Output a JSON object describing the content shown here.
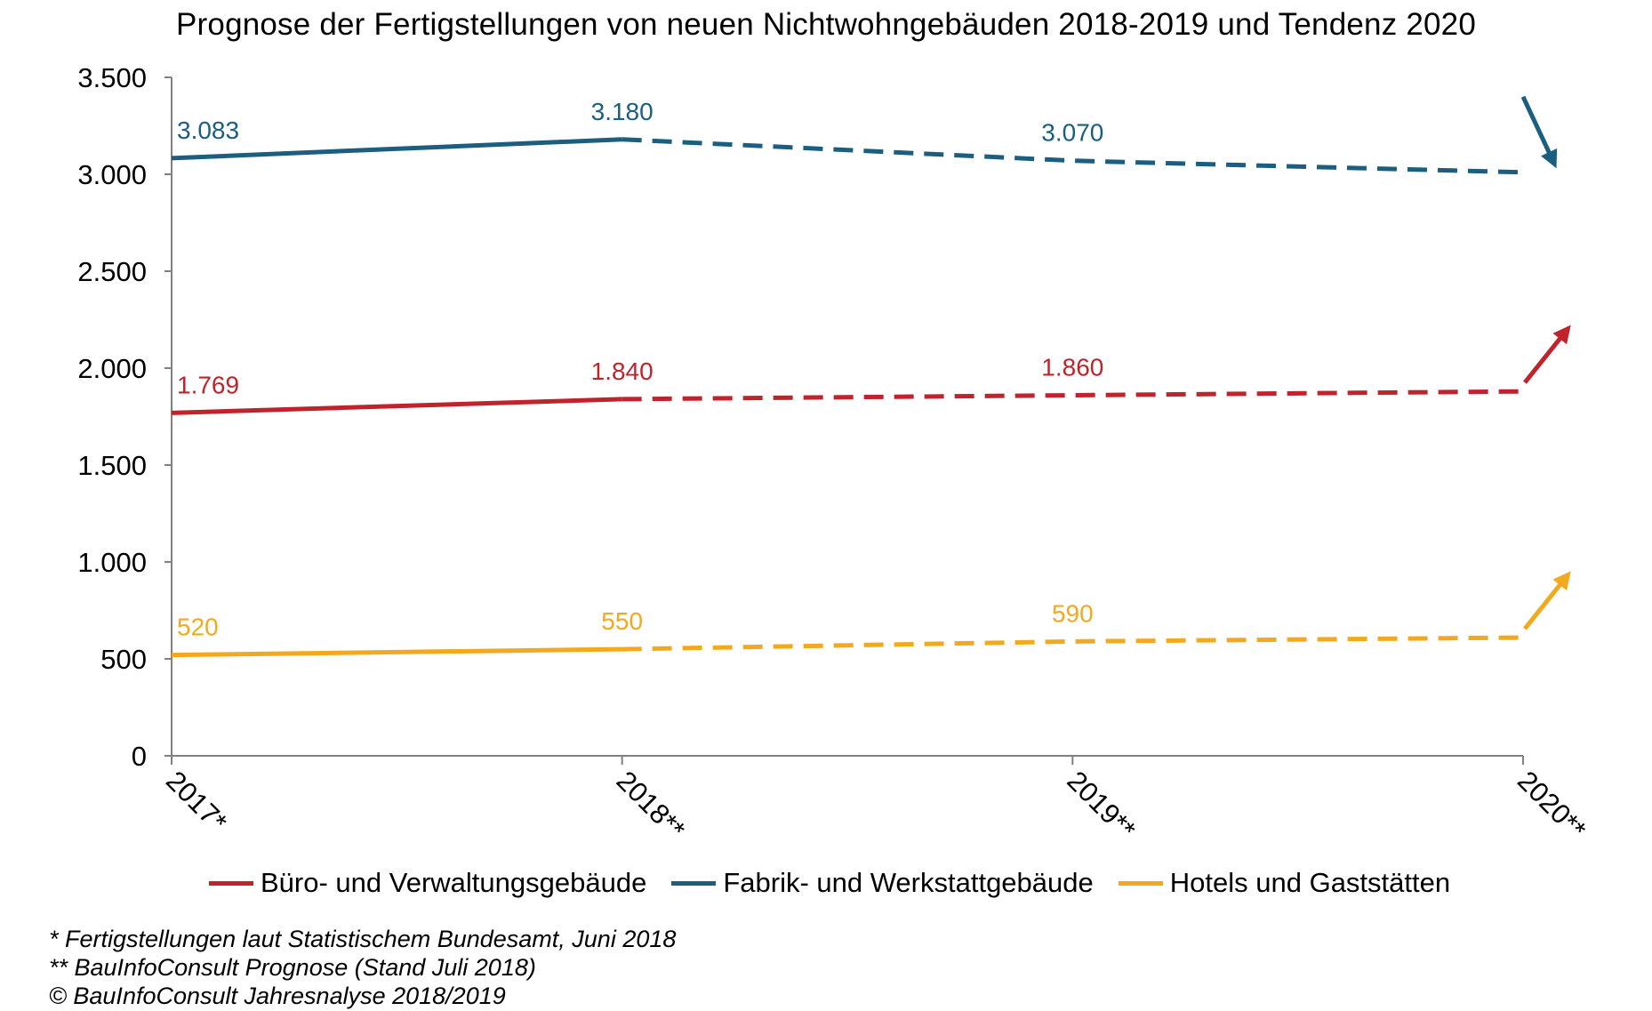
{
  "chart_data": {
    "type": "line",
    "title": "Prognose der Fertigstellungen  von neuen Nichtwohngebäuden  2018-2019 und Tendenz 2020",
    "categories": [
      "2017*",
      "2018**",
      "2019**",
      "2020**"
    ],
    "ylim": [
      0,
      3500
    ],
    "yticks": [
      0,
      500,
      1000,
      1500,
      2000,
      2500,
      3000,
      3500
    ],
    "ytick_labels": [
      "0",
      "500",
      "1.000",
      "1.500",
      "2.000",
      "2.500",
      "3.000",
      "3.500"
    ],
    "grid": false,
    "legend_position": "bottom",
    "forecast_from_index": 1,
    "series": [
      {
        "name": "Büro- und Verwaltungsgebäude",
        "color": "#c0232b",
        "values": [
          1769,
          1840,
          1860,
          1880
        ],
        "labels": [
          "1.769",
          "1.840",
          "1.860",
          ""
        ],
        "trend_2020": "up"
      },
      {
        "name": "Fabrik- und Werkstattgebäude",
        "color": "#1a5e80",
        "values": [
          3083,
          3180,
          3070,
          3010
        ],
        "labels": [
          "3.083",
          "3.180",
          "3.070",
          ""
        ],
        "trend_2020": "down"
      },
      {
        "name": "Hotels und Gaststätten",
        "color": "#f2a91e",
        "values": [
          520,
          550,
          590,
          610
        ],
        "labels": [
          "520",
          "550",
          "590",
          ""
        ],
        "trend_2020": "up"
      }
    ]
  },
  "footnotes": {
    "line1": "* Fertigstellungen laut Statistischem Bundesamt, Juni 2018",
    "line2": "** BauInfoConsult Prognose (Stand Juli 2018)",
    "line3": "© BauInfoConsult Jahresnalyse 2018/2019"
  }
}
